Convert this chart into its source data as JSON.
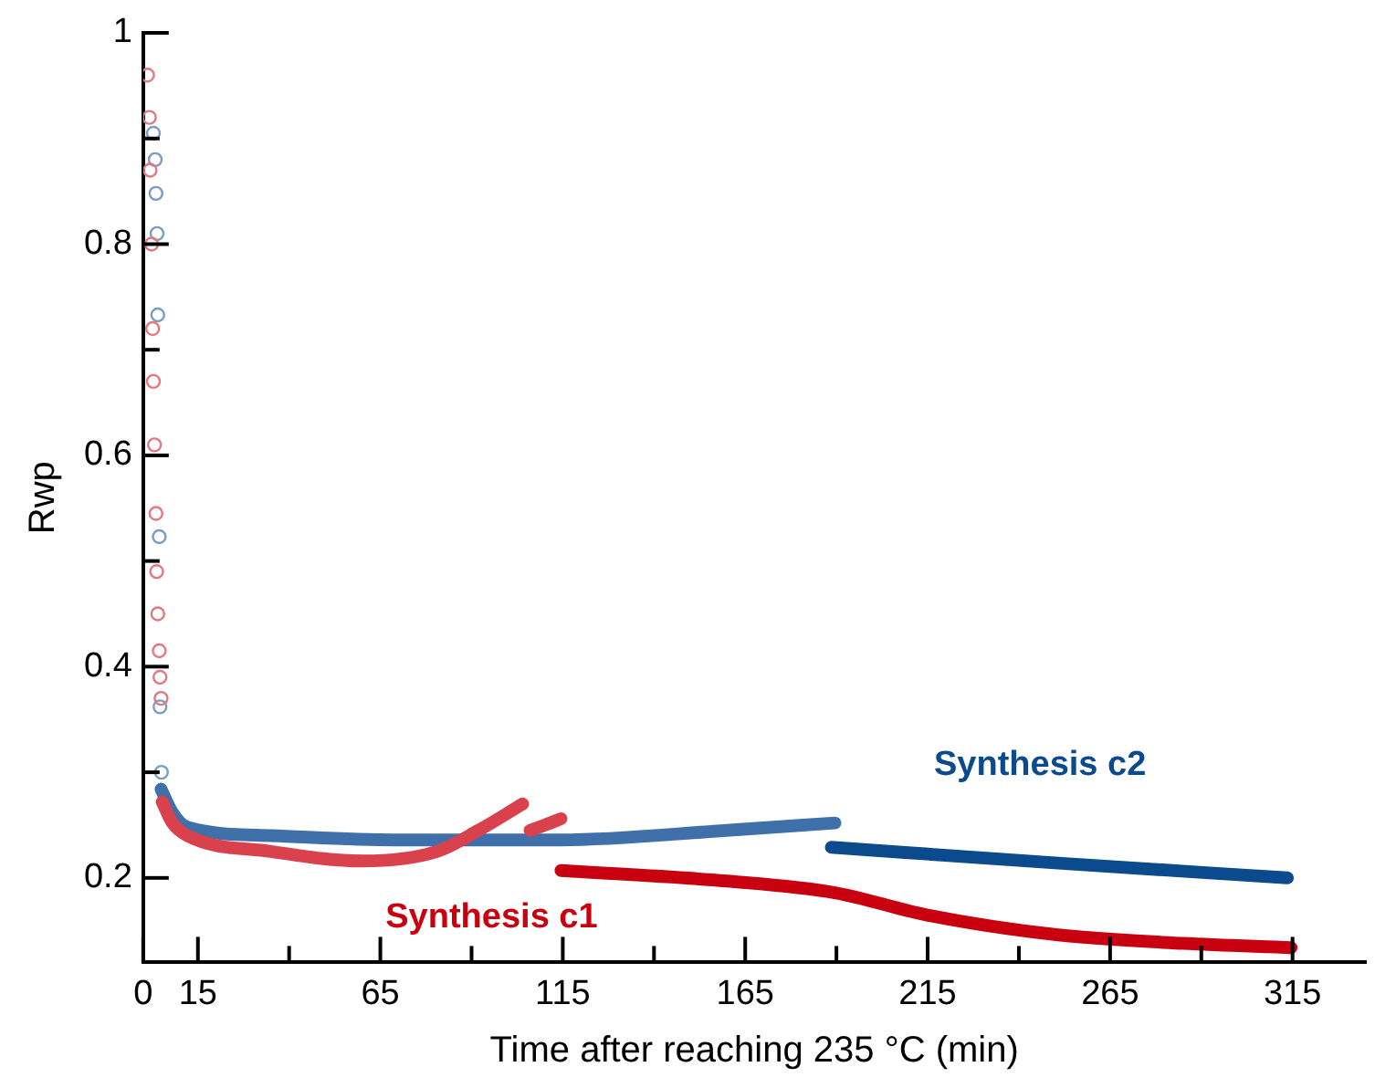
{
  "chart_data": {
    "type": "scatter",
    "xlabel": "Time after reaching 235 °C (min)",
    "ylabel": "Rwp",
    "xlim": [
      0,
      335
    ],
    "xticks": [
      0,
      15,
      {
        "value": 40,
        "label": null
      },
      65,
      {
        "value": 90,
        "label": null
      },
      115,
      {
        "value": 140,
        "label": null
      },
      165,
      {
        "value": 190,
        "label": null
      },
      215,
      {
        "value": 240,
        "label": null
      },
      265,
      {
        "value": 290,
        "label": null
      },
      315
    ],
    "ylim": [
      0.12,
      1
    ],
    "yticks": [
      0.2,
      {
        "value": 0.3,
        "label": null
      },
      0.4,
      {
        "value": 0.5,
        "label": null
      },
      0.6,
      {
        "value": 0.7,
        "label": null
      },
      0.8,
      {
        "value": 0.9,
        "label": null
      },
      1
    ],
    "grid": false,
    "series": [
      {
        "marker": "circle",
        "color": "#e07a80",
        "x": [
          1.2,
          1.7,
          1.9,
          2.3,
          2.6,
          2.8,
          3.1,
          3.5,
          3.7,
          4,
          4.4,
          4.6,
          4.9
        ],
        "values": [
          0.96,
          0.92,
          0.87,
          0.8,
          0.72,
          0.67,
          0.61,
          0.545,
          0.49,
          0.45,
          0.415,
          0.39,
          0.37
        ]
      },
      {
        "marker": "circle",
        "color": "#7a9cc6",
        "x": [
          2.8,
          3.3,
          3.5,
          3.8,
          4,
          4.4,
          4.6,
          5
        ],
        "values": [
          0.905,
          0.88,
          0.848,
          0.81,
          0.733,
          0.523,
          0.362,
          0.3
        ]
      },
      {
        "type": "line",
        "marker": "none",
        "color": "#d9414c",
        "x": [
          5.2,
          8,
          12.1,
          35,
          60,
          80.5,
          91.9,
          104
        ],
        "values": [
          0.272,
          0.252,
          0.24,
          0.225,
          0.216,
          0.225,
          0.245,
          0.27
        ]
      },
      {
        "type": "line",
        "marker": "none",
        "color": "#d9414c",
        "x": [
          106,
          110,
          114.5
        ],
        "values": [
          0.245,
          0.25,
          0.256
        ]
      },
      {
        "type": "line",
        "marker": "none",
        "color": "#3f70aa",
        "x": [
          4.9,
          8,
          12.1,
          35,
          69,
          114.5,
          160,
          189.6
        ],
        "values": [
          0.284,
          0.262,
          0.248,
          0.24,
          0.236,
          0.236,
          0.245,
          0.252
        ]
      },
      {
        "type": "line",
        "marker": "none",
        "name": "Synthesis c1",
        "color": "#c8000f",
        "x": [
          114.5,
          160,
          189.6,
          214.6,
          250.8,
          285,
          314.6
        ],
        "values": [
          0.207,
          0.197,
          0.186,
          0.165,
          0.146,
          0.138,
          0.134
        ]
      },
      {
        "type": "line",
        "marker": "none",
        "name": "Synthesis c2",
        "color": "#0b4a8c",
        "x": [
          188.6,
          250.8,
          313.6
        ],
        "values": [
          0.229,
          0.214,
          0.2
        ]
      }
    ]
  }
}
